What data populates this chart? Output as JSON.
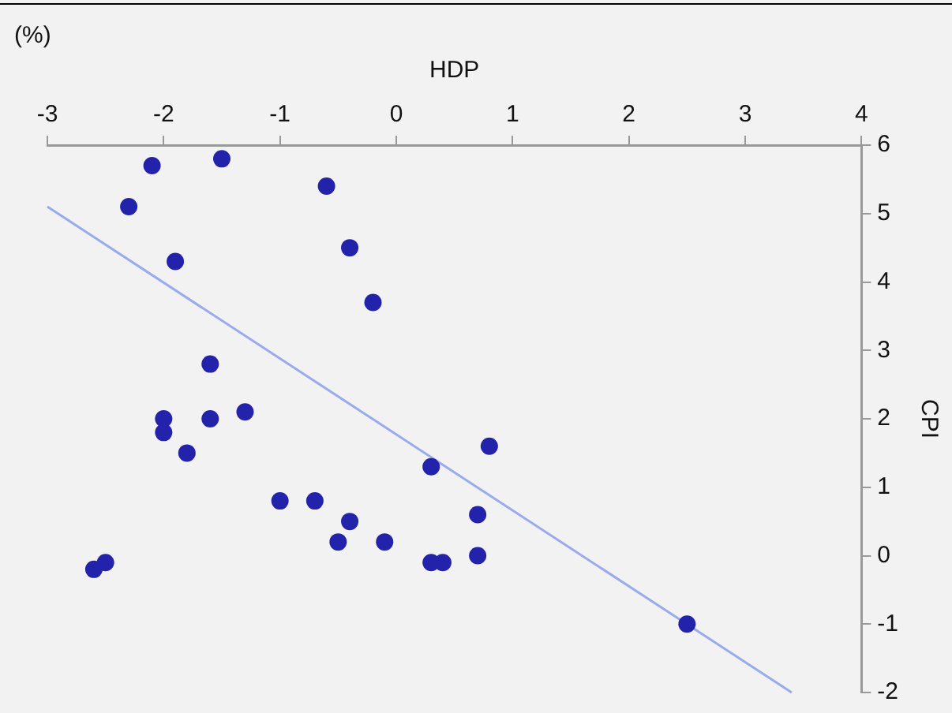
{
  "chart_data": {
    "type": "scatter",
    "xlabel": "HDP",
    "ylabel": "CPI",
    "annotations": [
      "(%)"
    ],
    "xlim": [
      -3,
      4
    ],
    "xticks": [
      -3,
      -2,
      -1,
      0,
      1,
      2,
      3,
      4
    ],
    "ylim": [
      -2,
      6
    ],
    "yticks": [
      -2,
      -1,
      0,
      1,
      2,
      3,
      4,
      5,
      6
    ],
    "grid": false,
    "legend": false,
    "marker": "circle",
    "series": [
      {
        "color": "#2222aa",
        "x": [
          -2.6,
          -2.5,
          -2.1,
          -2.3,
          -1.5,
          -1.9,
          -0.6,
          -0.4,
          -0.2,
          -1.6,
          -2.0,
          -2.0,
          -1.6,
          -1.3,
          -1.8,
          -1.0,
          -0.7,
          -0.4,
          -0.5,
          -0.1,
          0.3,
          0.8,
          0.7,
          0.7,
          0.3,
          0.4,
          2.5
        ],
        "values": [
          -0.2,
          -0.1,
          5.7,
          5.1,
          5.8,
          4.3,
          5.4,
          4.5,
          3.7,
          2.8,
          2.0,
          1.8,
          2.0,
          2.1,
          1.5,
          0.8,
          0.8,
          0.5,
          0.2,
          0.2,
          1.3,
          1.6,
          0.6,
          0.0,
          -0.1,
          -0.1,
          -1.0
        ]
      },
      {
        "type": "line",
        "color": "#9aaaee",
        "x": [
          -3,
          3.4
        ],
        "values": [
          5.1,
          -2.0
        ],
        "marker": "none"
      }
    ]
  }
}
